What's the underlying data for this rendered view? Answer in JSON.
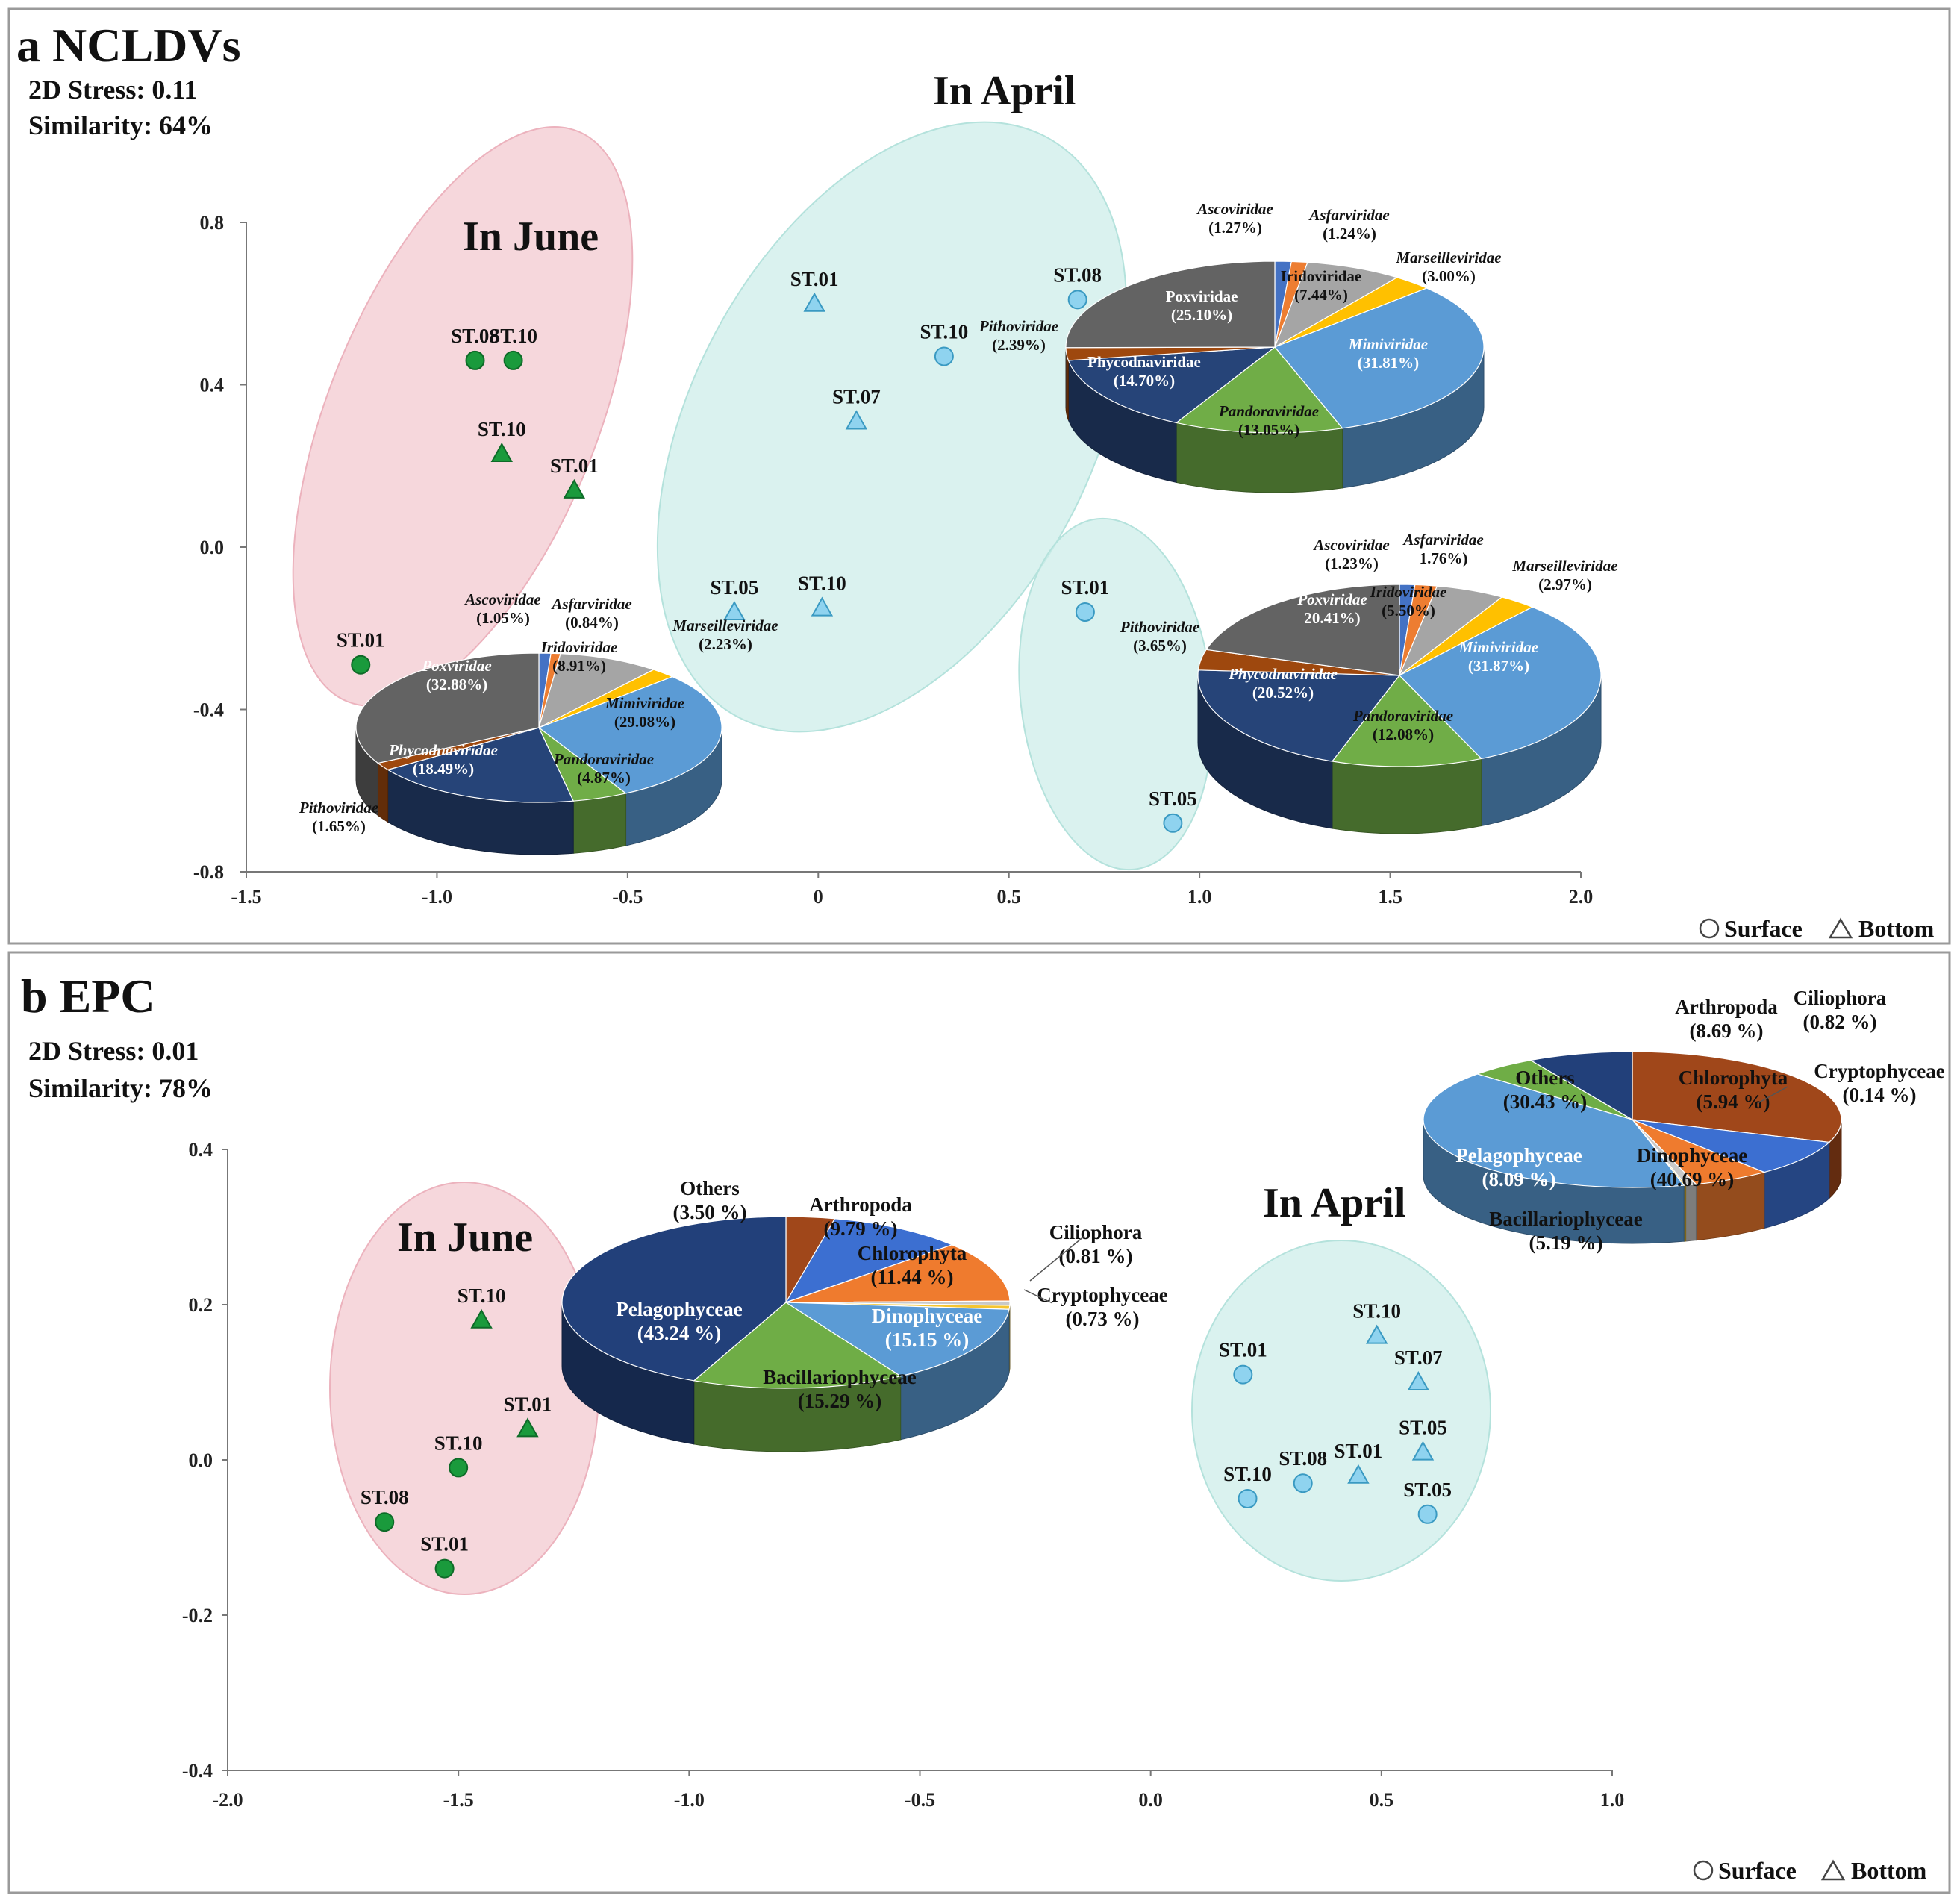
{
  "panels": [
    {
      "id": "a",
      "heading": "a NCLDVs",
      "stress": "2D Stress: 0.11",
      "similarity": "Similarity: 64%",
      "legend": {
        "surface": "Surface",
        "bottom": "Bottom"
      },
      "group_labels": {
        "june": "In June",
        "april": "In April"
      }
    },
    {
      "id": "b",
      "heading": "b EPC",
      "stress": "2D Stress: 0.01",
      "similarity": "Similarity: 78%",
      "legend": {
        "surface": "Surface",
        "bottom": "Bottom"
      },
      "group_labels": {
        "june": "In June",
        "april": "In April"
      }
    }
  ],
  "colors": {
    "june_marker": "#1a9a3c",
    "april_marker": "#8fd3ef",
    "june_ellipse": "#f3c9d0",
    "april_ellipse": "#cdeeea",
    "Ascoviridae": "#4472c4",
    "Asfarviridae": "#ed7d31",
    "Iridoviridae": "#a5a5a5",
    "Marseilleviridae": "#ffc000",
    "Mimiviridae": "#5b9bd5",
    "Pandoraviridae": "#70ad47",
    "Phycodnaviridae": "#264478",
    "Pithoviridae": "#9e480e",
    "Poxviridae": "#636363"
  },
  "chart_data": [
    {
      "type": "scatter",
      "title": "a NCLDVs",
      "xlim": [
        -1.5,
        2.0
      ],
      "ylim": [
        -0.8,
        0.8
      ],
      "xticks": [
        "-1.5",
        "-1.0",
        "-0.5",
        "0",
        "0.5",
        "1.0",
        "1.5",
        "2.0"
      ],
      "yticks": [
        "0.8",
        "0.4",
        "0.0",
        "-0.4",
        "-0.8"
      ],
      "points": [
        {
          "label": "ST.08",
          "x": -0.9,
          "y": 0.46,
          "group": "June",
          "layer": "Surface"
        },
        {
          "label": "ST.10",
          "x": -0.8,
          "y": 0.46,
          "group": "June",
          "layer": "Surface"
        },
        {
          "label": "ST.10",
          "x": -0.83,
          "y": 0.23,
          "group": "June",
          "layer": "Bottom"
        },
        {
          "label": "ST.01",
          "x": -0.64,
          "y": 0.14,
          "group": "June",
          "layer": "Bottom"
        },
        {
          "label": "ST.01",
          "x": -1.2,
          "y": -0.29,
          "group": "June",
          "layer": "Surface"
        },
        {
          "label": "ST.01",
          "x": -0.01,
          "y": 0.6,
          "group": "April",
          "layer": "Bottom"
        },
        {
          "label": "ST.08",
          "x": 0.68,
          "y": 0.61,
          "group": "April",
          "layer": "Surface"
        },
        {
          "label": "ST.10",
          "x": 0.33,
          "y": 0.47,
          "group": "April",
          "layer": "Surface"
        },
        {
          "label": "ST.07",
          "x": 0.1,
          "y": 0.31,
          "group": "April",
          "layer": "Bottom"
        },
        {
          "label": "ST.05",
          "x": -0.22,
          "y": -0.16,
          "group": "April",
          "layer": "Bottom"
        },
        {
          "label": "ST.10",
          "x": 0.01,
          "y": -0.15,
          "group": "April",
          "layer": "Bottom"
        },
        {
          "label": "ST.01",
          "x": 0.7,
          "y": -0.16,
          "group": "April",
          "layer": "Surface"
        },
        {
          "label": "ST.05",
          "x": 0.93,
          "y": -0.68,
          "group": "April",
          "layer": "Surface"
        }
      ],
      "pies": [
        {
          "name": "June",
          "slices": [
            {
              "label": "Ascoviridae",
              "pct": "(1.05%)",
              "value": 1.05
            },
            {
              "label": "Asfarviridae",
              "pct": "(0.84%)",
              "value": 0.84
            },
            {
              "label": "Iridoviridae",
              "pct": "(8.91%)",
              "value": 8.91
            },
            {
              "label": "Marseilleviridae",
              "pct": "(2.23%)",
              "value": 2.23
            },
            {
              "label": "Mimiviridae",
              "pct": "(29.08%)",
              "value": 29.08
            },
            {
              "label": "Pandoraviridae",
              "pct": "(4.87%)",
              "value": 4.87
            },
            {
              "label": "Phycodnaviridae",
              "pct": "(18.49%)",
              "value": 18.49
            },
            {
              "label": "Pithoviridae",
              "pct": "(1.65%)",
              "value": 1.65
            },
            {
              "label": "Poxviridae",
              "pct": "(32.88%)",
              "value": 32.88
            }
          ]
        },
        {
          "name": "April-1",
          "slices": [
            {
              "label": "Ascoviridae",
              "pct": "(1.27%)",
              "value": 1.27
            },
            {
              "label": "Asfarviridae",
              "pct": "(1.24%)",
              "value": 1.24
            },
            {
              "label": "Iridoviridae",
              "pct": "(7.44%)",
              "value": 7.44
            },
            {
              "label": "Marseilleviridae",
              "pct": "(3.00%)",
              "value": 3.0
            },
            {
              "label": "Mimiviridae",
              "pct": "(31.81%)",
              "value": 31.81
            },
            {
              "label": "Pandoraviridae",
              "pct": "(13.05%)",
              "value": 13.05
            },
            {
              "label": "Phycodnaviridae",
              "pct": "(14.70%)",
              "value": 14.7
            },
            {
              "label": "Pithoviridae",
              "pct": "(2.39%)",
              "value": 2.39
            },
            {
              "label": "Poxviridae",
              "pct": "(25.10%)",
              "value": 25.1
            }
          ]
        },
        {
          "name": "April-2",
          "slices": [
            {
              "label": "Ascoviridae",
              "pct": "(1.23%)",
              "value": 1.23
            },
            {
              "label": "Asfarviridae",
              "pct": "1.76%)",
              "value": 1.76
            },
            {
              "label": "Iridoviridae",
              "pct": "(5.50%)",
              "value": 5.5
            },
            {
              "label": "Marseilleviridae",
              "pct": "(2.97%)",
              "value": 2.97
            },
            {
              "label": "Mimiviridae",
              "pct": "(31.87%)",
              "value": 31.87
            },
            {
              "label": "Pandoraviridae",
              "pct": "(12.08%)",
              "value": 12.08
            },
            {
              "label": "Phycodnaviridae",
              "pct": "(20.52%)",
              "value": 20.52
            },
            {
              "label": "Pithoviridae",
              "pct": "(3.65%)",
              "value": 3.65
            },
            {
              "label": "Poxviridae",
              "pct": "20.41%)",
              "value": 20.41
            }
          ]
        }
      ]
    },
    {
      "type": "scatter",
      "title": "b EPC",
      "xlim": [
        -2.0,
        1.0
      ],
      "ylim": [
        -0.4,
        0.4
      ],
      "xticks": [
        "-2.0",
        "-1.5",
        "-1.0",
        "-0.5",
        "0.0",
        "0.5",
        "1.0"
      ],
      "yticks": [
        "0.4",
        "0.2",
        "0.0",
        "-0.2",
        "-0.4"
      ],
      "points": [
        {
          "label": "ST.10",
          "x": -1.45,
          "y": 0.18,
          "group": "June",
          "layer": "Bottom"
        },
        {
          "label": "ST.01",
          "x": -1.35,
          "y": 0.04,
          "group": "June",
          "layer": "Bottom"
        },
        {
          "label": "ST.10",
          "x": -1.5,
          "y": -0.01,
          "group": "June",
          "layer": "Surface"
        },
        {
          "label": "ST.08",
          "x": -1.66,
          "y": -0.08,
          "group": "June",
          "layer": "Surface"
        },
        {
          "label": "ST.01",
          "x": -1.53,
          "y": -0.14,
          "group": "June",
          "layer": "Surface"
        },
        {
          "label": "ST.10",
          "x": 0.49,
          "y": 0.16,
          "group": "April",
          "layer": "Bottom"
        },
        {
          "label": "ST.01",
          "x": 0.2,
          "y": 0.11,
          "group": "April",
          "layer": "Surface"
        },
        {
          "label": "ST.07",
          "x": 0.58,
          "y": 0.1,
          "group": "April",
          "layer": "Bottom"
        },
        {
          "label": "ST.05",
          "x": 0.59,
          "y": 0.01,
          "group": "April",
          "layer": "Bottom"
        },
        {
          "label": "ST.01",
          "x": 0.45,
          "y": -0.02,
          "group": "April",
          "layer": "Bottom"
        },
        {
          "label": "ST.08",
          "x": 0.33,
          "y": -0.03,
          "group": "April",
          "layer": "Surface"
        },
        {
          "label": "ST.10",
          "x": 0.21,
          "y": -0.05,
          "group": "April",
          "layer": "Surface"
        },
        {
          "label": "ST.05",
          "x": 0.6,
          "y": -0.07,
          "group": "April",
          "layer": "Surface"
        }
      ],
      "pies": [
        {
          "name": "June",
          "slices": [
            {
              "label": "Others",
              "pct": "(3.50 %)",
              "value": 3.5
            },
            {
              "label": "Arthropoda",
              "pct": "(9.79 %)",
              "value": 9.79
            },
            {
              "label": "Chlorophyta",
              "pct": "(11.44 %)",
              "value": 11.44
            },
            {
              "label": "Ciliophora",
              "pct": "(0.81 %)",
              "value": 0.81
            },
            {
              "label": "Cryptophyceae",
              "pct": "(0.73 %)",
              "value": 0.73
            },
            {
              "label": "Dinophyceae",
              "pct": "(15.15 %)",
              "value": 15.15
            },
            {
              "label": "Bacillariophyceae",
              "pct": "(15.29 %)",
              "value": 15.29
            },
            {
              "label": "Pelagophyceae",
              "pct": "(43.24 %)",
              "value": 43.24
            }
          ]
        },
        {
          "name": "April",
          "slices": [
            {
              "label": "Others",
              "pct": "(30.43 %)",
              "value": 30.43
            },
            {
              "label": "Arthropoda",
              "pct": "(8.69 %)",
              "value": 8.69
            },
            {
              "label": "Chlorophyta",
              "pct": "(5.94 %)",
              "value": 5.94
            },
            {
              "label": "Ciliophora",
              "pct": "(0.82 %)",
              "value": 0.82
            },
            {
              "label": "Cryptophyceae",
              "pct": "(0.14 %)",
              "value": 0.14
            },
            {
              "label": "Dinophyceae",
              "pct": "(40.69 %)",
              "value": 40.69
            },
            {
              "label": "Bacillariophyceae",
              "pct": "(5.19 %)",
              "value": 5.19
            },
            {
              "label": "Pelagophyceae",
              "pct": "(8.09 %)",
              "value": 8.09
            }
          ]
        }
      ]
    }
  ]
}
